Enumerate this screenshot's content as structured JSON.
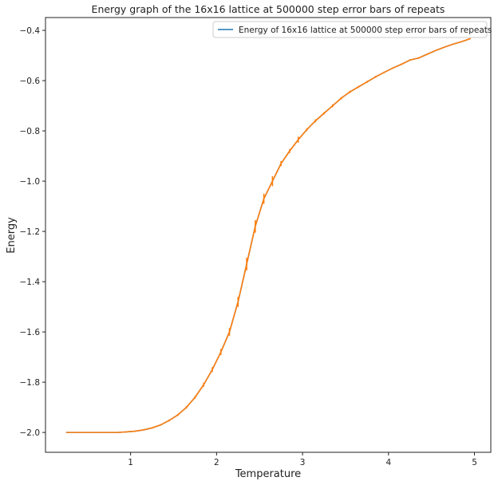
{
  "chart_data": {
    "type": "line",
    "title": "Energy graph of the 16x16 lattice at 500000 step error bars of repeats",
    "xlabel": "Temperature",
    "ylabel": "Energy",
    "xlim": [
      0.01,
      5.19
    ],
    "ylim": [
      -2.079,
      -0.349
    ],
    "xticks": [
      1,
      2,
      3,
      4,
      5
    ],
    "xtick_labels": [
      "1",
      "2",
      "3",
      "4",
      "5"
    ],
    "yticks": [
      -2.0,
      -1.8,
      -1.6,
      -1.4,
      -1.2,
      -1.0,
      -0.8,
      -0.6,
      -0.4
    ],
    "ytick_labels": [
      "−2.0",
      "−1.8",
      "−1.6",
      "−1.4",
      "−1.2",
      "−1.0",
      "−0.8",
      "−0.6",
      "−0.4"
    ],
    "grid": false,
    "legend_position": "top-right",
    "series": [
      {
        "name": "Energy of 16x16 lattice at 500000 step error bars of repeats",
        "color": "#1f77b4",
        "errorbar_color": "#ff7f0e",
        "x": [
          0.25,
          0.35,
          0.45,
          0.55,
          0.65,
          0.75,
          0.85,
          0.95,
          1.05,
          1.15,
          1.25,
          1.35,
          1.45,
          1.55,
          1.65,
          1.75,
          1.85,
          1.95,
          2.05,
          2.15,
          2.25,
          2.35,
          2.45,
          2.55,
          2.65,
          2.75,
          2.85,
          2.95,
          3.05,
          3.15,
          3.25,
          3.35,
          3.45,
          3.55,
          3.65,
          3.75,
          3.85,
          3.95,
          4.05,
          4.15,
          4.25,
          4.35,
          4.45,
          4.55,
          4.65,
          4.75,
          4.85,
          4.95
        ],
        "y": [
          -2.0,
          -2.0,
          -2.0,
          -2.0,
          -2.0,
          -2.0,
          -2.0,
          -1.998,
          -1.995,
          -1.99,
          -1.982,
          -1.97,
          -1.952,
          -1.93,
          -1.9,
          -1.86,
          -1.81,
          -1.75,
          -1.68,
          -1.6,
          -1.48,
          -1.33,
          -1.18,
          -1.07,
          -1.0,
          -0.93,
          -0.88,
          -0.835,
          -0.795,
          -0.76,
          -0.73,
          -0.7,
          -0.67,
          -0.645,
          -0.625,
          -0.605,
          -0.585,
          -0.567,
          -0.55,
          -0.535,
          -0.518,
          -0.51,
          -0.495,
          -0.48,
          -0.467,
          -0.455,
          -0.445,
          -0.433
        ],
        "yerr": [
          0,
          0,
          0,
          0,
          0,
          0,
          0,
          0.001,
          0.002,
          0.002,
          0.003,
          0.003,
          0.004,
          0.004,
          0.005,
          0.006,
          0.008,
          0.01,
          0.012,
          0.015,
          0.02,
          0.025,
          0.025,
          0.02,
          0.02,
          0.01,
          0.008,
          0.012,
          0.006,
          0.006,
          0.005,
          0.006,
          0.005,
          0.005,
          0.004,
          0.004,
          0.004,
          0.003,
          0.003,
          0.003,
          0.003,
          0.003,
          0.003,
          0.002,
          0.002,
          0.002,
          0.002,
          0.002
        ]
      }
    ]
  }
}
